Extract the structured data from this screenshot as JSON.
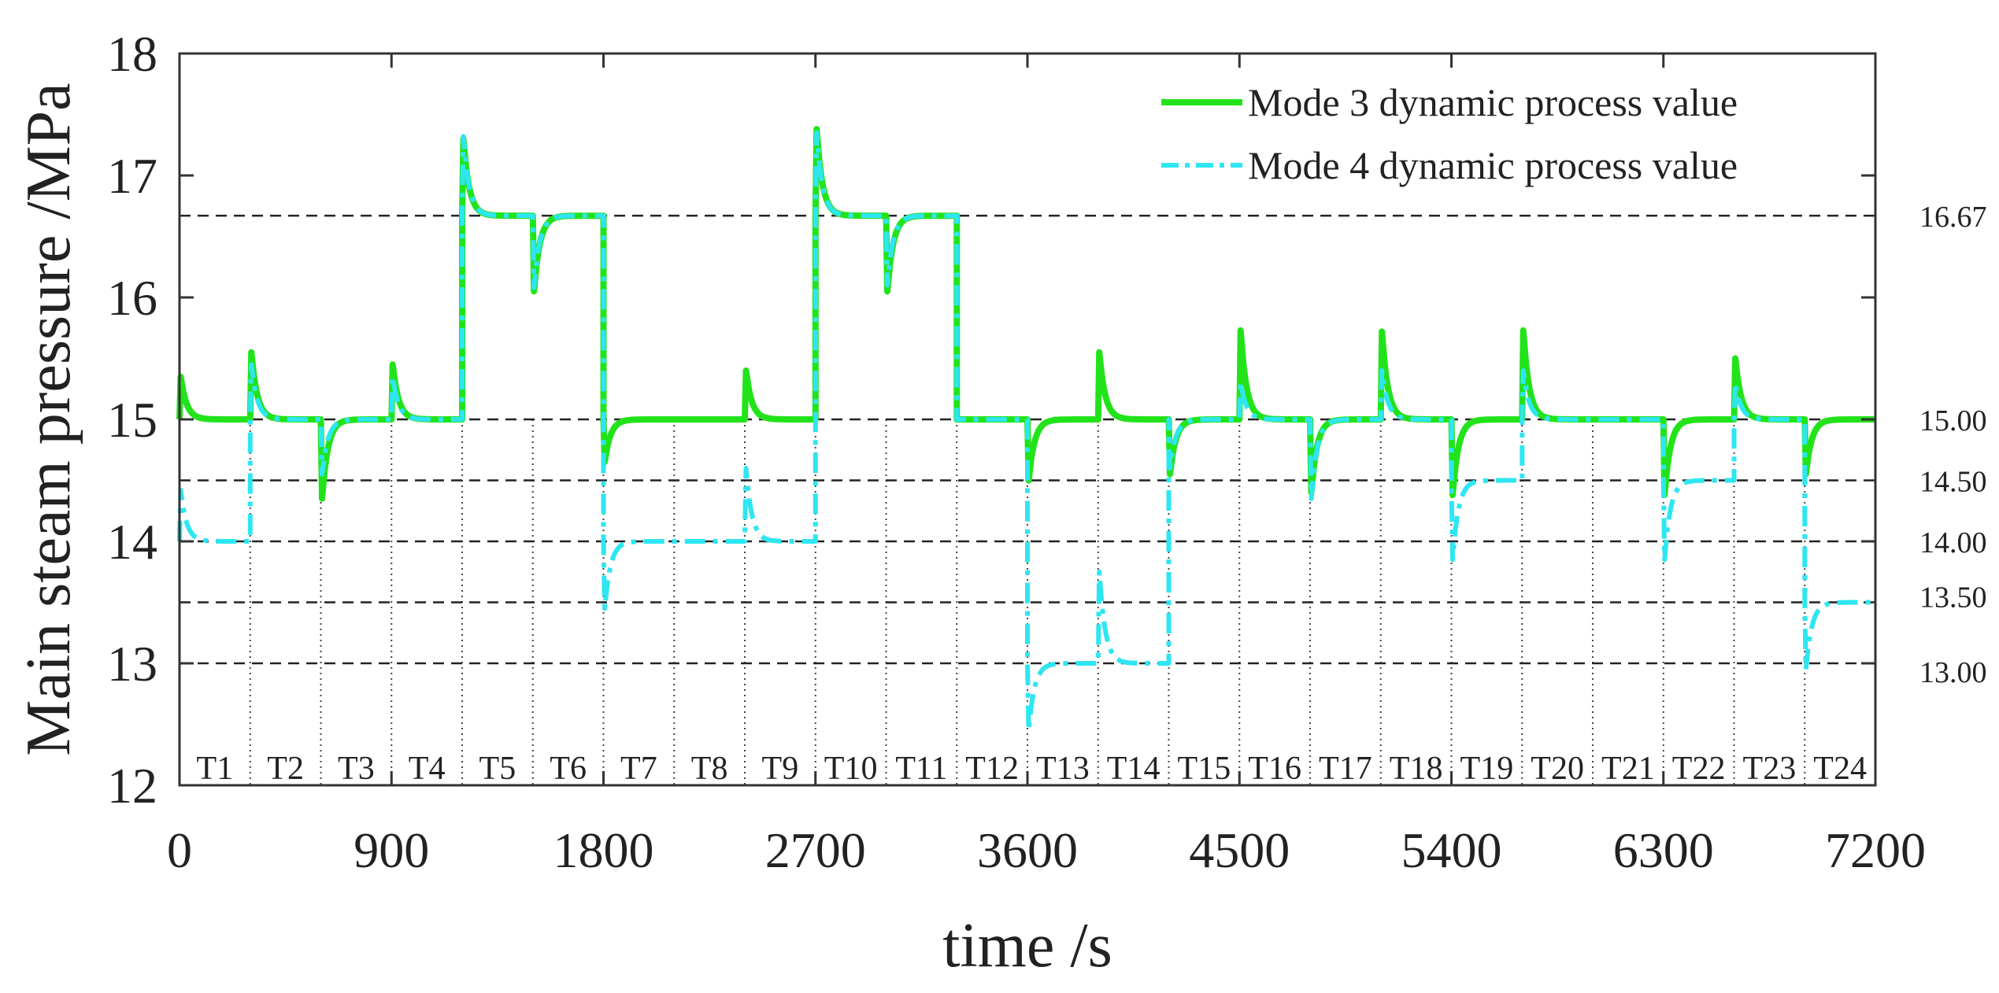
{
  "chart_data": {
    "type": "line",
    "title": "",
    "xlabel": "time /s",
    "ylabel": "Main steam pressure /MPa",
    "xlim": [
      0,
      7200
    ],
    "ylim": [
      12,
      18
    ],
    "x_ticks": [
      0,
      900,
      1800,
      2700,
      3600,
      4500,
      5400,
      6300,
      7200
    ],
    "y_ticks": [
      12,
      13,
      14,
      15,
      16,
      17,
      18
    ],
    "reference_lines": [
      {
        "value": 16.67,
        "label": "16.67"
      },
      {
        "value": 15.0,
        "label": "15.00"
      },
      {
        "value": 14.5,
        "label": "14.50"
      },
      {
        "value": 14.0,
        "label": "14.00"
      },
      {
        "value": 13.5,
        "label": "13.50"
      },
      {
        "value": 13.0,
        "label": "13.00"
      }
    ],
    "periods": [
      {
        "label": "T1",
        "start": 0,
        "end": 300
      },
      {
        "label": "T2",
        "start": 300,
        "end": 600
      },
      {
        "label": "T3",
        "start": 600,
        "end": 900
      },
      {
        "label": "T4",
        "start": 900,
        "end": 1200
      },
      {
        "label": "T5",
        "start": 1200,
        "end": 1500
      },
      {
        "label": "T6",
        "start": 1500,
        "end": 1800
      },
      {
        "label": "T7",
        "start": 1800,
        "end": 2100
      },
      {
        "label": "T8",
        "start": 2100,
        "end": 2400
      },
      {
        "label": "T9",
        "start": 2400,
        "end": 2700
      },
      {
        "label": "T10",
        "start": 2700,
        "end": 3000
      },
      {
        "label": "T11",
        "start": 3000,
        "end": 3300
      },
      {
        "label": "T12",
        "start": 3300,
        "end": 3600
      },
      {
        "label": "T13",
        "start": 3600,
        "end": 3900
      },
      {
        "label": "T14",
        "start": 3900,
        "end": 4200
      },
      {
        "label": "T15",
        "start": 4200,
        "end": 4500
      },
      {
        "label": "T16",
        "start": 4500,
        "end": 4800
      },
      {
        "label": "T17",
        "start": 4800,
        "end": 5100
      },
      {
        "label": "T18",
        "start": 5100,
        "end": 5400
      },
      {
        "label": "T19",
        "start": 5400,
        "end": 5700
      },
      {
        "label": "T20",
        "start": 5700,
        "end": 6000
      },
      {
        "label": "T21",
        "start": 6000,
        "end": 6300
      },
      {
        "label": "T22",
        "start": 6300,
        "end": 6600
      },
      {
        "label": "T23",
        "start": 6600,
        "end": 6900
      },
      {
        "label": "T24",
        "start": 6900,
        "end": 7200
      }
    ],
    "series": [
      {
        "name": "Mode 3 dynamic process value",
        "color": "#22e31a",
        "style": "solid",
        "levels": [
          15,
          15,
          15,
          15,
          16.67,
          16.67,
          15,
          15,
          15,
          16.67,
          16.67,
          15,
          15,
          15,
          15,
          15,
          15,
          15,
          15,
          15,
          15,
          15,
          15,
          15
        ],
        "initial_peak": 15.35,
        "spikes": [
          15.35,
          15.55,
          14.35,
          15.45,
          17.3,
          16.05,
          14.65,
          15.0,
          15.4,
          17.38,
          16.05,
          15.0,
          14.5,
          15.55,
          14.55,
          15.73,
          14.4,
          15.72,
          14.38,
          15.73,
          15.0,
          14.38,
          15.5,
          14.55
        ]
      },
      {
        "name": "Mode 4 dynamic process value",
        "color": "#2ee6f2",
        "style": "dashdot",
        "levels": [
          14,
          15,
          15,
          15,
          16.67,
          16.67,
          14,
          14,
          14,
          16.67,
          16.67,
          15,
          13,
          13,
          15,
          15,
          15,
          15,
          14.5,
          15,
          15,
          14.5,
          15,
          13.5
        ],
        "initial_peak": 14.42,
        "spikes": [
          14.42,
          15.45,
          14.55,
          15.35,
          17.32,
          16.08,
          13.45,
          14.0,
          14.6,
          17.35,
          16.1,
          15.0,
          12.45,
          13.75,
          14.6,
          15.3,
          14.35,
          15.4,
          13.85,
          15.4,
          15.0,
          13.85,
          15.3,
          12.95
        ]
      }
    ]
  }
}
